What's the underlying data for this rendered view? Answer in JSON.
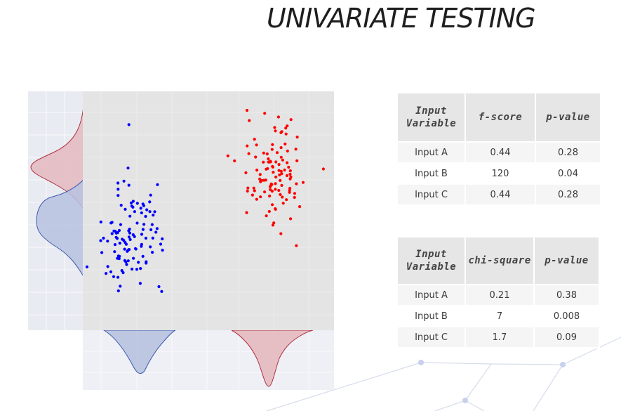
{
  "title": "UNIVARIATE TESTING",
  "table1": {
    "headers": [
      "Input\nVariable",
      "f-score",
      "p-value"
    ],
    "rows": [
      [
        "Input A",
        "0.44",
        "0.28"
      ],
      [
        "Input B",
        "120",
        "0.04"
      ],
      [
        "Input C",
        "0.44",
        "0.28"
      ]
    ]
  },
  "table2": {
    "headers": [
      "Input\nVariable",
      "chi-square",
      "p-value"
    ],
    "rows": [
      [
        "Input A",
        "0.21",
        "0.38"
      ],
      [
        "Input B",
        "7",
        "0.008"
      ],
      [
        "Input C",
        "1.7",
        "0.09"
      ]
    ]
  },
  "chart_data": {
    "type": "scatter",
    "title": "",
    "xlabel": "",
    "ylabel": "",
    "grid": true,
    "marginal_distributions": true,
    "series": [
      {
        "color": "#0000ff",
        "fill_color": "#b7c2e0",
        "cluster": "lower-left"
      },
      {
        "color": "#ff0000",
        "fill_color": "#e4b9c0",
        "cluster": "upper-right"
      }
    ]
  }
}
